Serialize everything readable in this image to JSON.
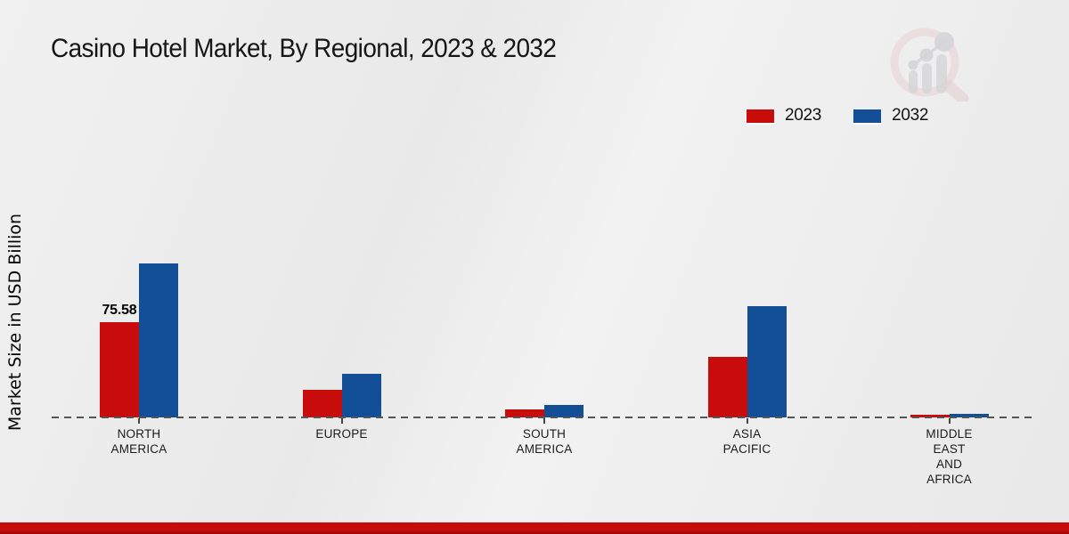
{
  "page_title": "Casino Hotel Market, By Regional, 2023 & 2032",
  "y_axis_label": "Market Size in USD Billion",
  "legend": {
    "items": [
      {
        "label": "2023",
        "color": "#c80b0b"
      },
      {
        "label": "2032",
        "color": "#134f97"
      }
    ],
    "position": "top-right"
  },
  "colors": {
    "series_2023": "#c80b0b",
    "series_2032": "#134f97",
    "baseline": "#555555",
    "footer_band": "#c60b0b",
    "background": "#ececec",
    "text": "#161616"
  },
  "icons": {
    "brand_logo": "magnifier-bar-chart-watermark-icon"
  },
  "chart_data": {
    "type": "bar",
    "title": "Casino Hotel Market, By Regional, 2023 & 2032",
    "xlabel": "",
    "ylabel": "Market Size in USD Billion",
    "categories": [
      "NORTH AMERICA",
      "EUROPE",
      "SOUTH AMERICA",
      "ASIA PACIFIC",
      "MIDDLE EAST AND AFRICA"
    ],
    "category_label_lines": [
      [
        "NORTH",
        "AMERICA"
      ],
      [
        "EUROPE"
      ],
      [
        "SOUTH",
        "AMERICA"
      ],
      [
        "ASIA",
        "PACIFIC"
      ],
      [
        "MIDDLE",
        "EAST",
        "AND",
        "AFRICA"
      ]
    ],
    "series": [
      {
        "name": "2023",
        "color": "#c80b0b",
        "values": [
          75.58,
          22.0,
          6.4,
          47.7,
          1.8
        ]
      },
      {
        "name": "2032",
        "color": "#134f97",
        "values": [
          122.2,
          34.8,
          9.9,
          88.3,
          2.8
        ]
      }
    ],
    "ylim": [
      0,
      130
    ],
    "grid": false,
    "y_ticks_visible": false,
    "legend_position": "top-right",
    "annotations": [
      {
        "series": "2023",
        "category": "NORTH AMERICA",
        "text": "75.58"
      }
    ]
  },
  "footer": {
    "note": ""
  }
}
